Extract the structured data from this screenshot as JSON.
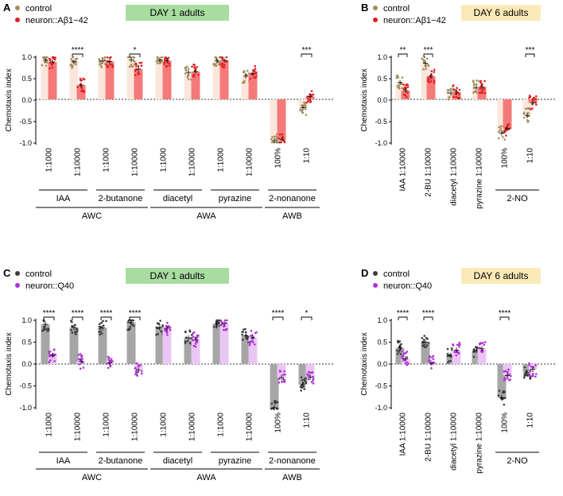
{
  "chart_data": [
    {
      "panel": "A",
      "type": "bar",
      "title": "DAY 1 adults",
      "title_bg": "#a8dca0",
      "ylabel": "Chemotaxis index",
      "ylim": [
        -1.0,
        1.0
      ],
      "yticks": [
        "1.0",
        "0.5",
        "0.0",
        "-0.5",
        "-1.0"
      ],
      "legend_position": "top-left",
      "series": [
        {
          "name": "control",
          "color": "#a0905a",
          "bar_color": "#fbe6dc"
        },
        {
          "name": "neuron::Aβ1−42",
          "color": "#e02020",
          "bar_color": "#f47a7a"
        }
      ],
      "categories": [
        "1:1000",
        "1:10000",
        "1:1000",
        "1:10000",
        "1:1000",
        "1:10000",
        "1:1000",
        "1:10000",
        "100%",
        "1:10"
      ],
      "groups": [
        [
          0.93,
          0.89
        ],
        [
          0.89,
          0.34
        ],
        [
          0.91,
          0.9
        ],
        [
          0.94,
          0.72
        ],
        [
          0.94,
          0.92
        ],
        [
          0.64,
          0.66
        ],
        [
          0.92,
          0.93
        ],
        [
          0.55,
          0.62
        ],
        [
          -0.98,
          -0.96
        ],
        [
          -0.2,
          0.07
        ]
      ],
      "significance": [
        {
          "group": 1,
          "label": "****"
        },
        {
          "group": 3,
          "label": "*"
        },
        {
          "group": 9,
          "label": "***"
        }
      ],
      "odorants": [
        {
          "label": "IAA",
          "span": [
            0,
            1
          ]
        },
        {
          "label": "2-butanone",
          "span": [
            2,
            3
          ]
        },
        {
          "label": "diacetyl",
          "span": [
            4,
            5
          ]
        },
        {
          "label": "pyrazine",
          "span": [
            6,
            7
          ]
        },
        {
          "label": "2-nonanone",
          "span": [
            8,
            9
          ]
        }
      ],
      "neurons": [
        {
          "label": "AWC",
          "span": [
            0,
            3
          ]
        },
        {
          "label": "AWA",
          "span": [
            4,
            7
          ]
        },
        {
          "label": "AWB",
          "span": [
            8,
            9
          ]
        }
      ]
    },
    {
      "panel": "B",
      "type": "bar",
      "title": "DAY 6 adults",
      "title_bg": "#fbeab8",
      "ylabel": "Chemotaxis index",
      "ylim": [
        -1.0,
        1.0
      ],
      "yticks": [
        "1.0",
        "0.5",
        "0.0",
        "-0.5",
        "-1.0"
      ],
      "legend_position": "top-left",
      "series": [
        {
          "name": "control",
          "color": "#a0905a",
          "bar_color": "#fbe6dc"
        },
        {
          "name": "neuron::Aβ1−42",
          "color": "#e02020",
          "bar_color": "#f47a7a"
        }
      ],
      "categories": [
        "IAA 1:10000",
        "2-BU 1:10000",
        "diacetyl 1:10000",
        "pyrazine 1:10000",
        "100%",
        "1:10"
      ],
      "groups": [
        [
          0.4,
          0.21
        ],
        [
          0.86,
          0.55
        ],
        [
          0.15,
          0.17
        ],
        [
          0.28,
          0.3
        ],
        [
          -0.8,
          -0.7
        ],
        [
          -0.38,
          -0.08
        ]
      ],
      "significance": [
        {
          "group": 0,
          "label": "**"
        },
        {
          "group": 1,
          "label": "***"
        },
        {
          "group": 5,
          "label": "***"
        }
      ],
      "odorants": [
        {
          "label": "2-NO",
          "span": [
            4,
            5
          ]
        }
      ],
      "neurons": []
    },
    {
      "panel": "C",
      "type": "bar",
      "title": "DAY 1 adults",
      "title_bg": "#a8dca0",
      "ylabel": "Chemotaxis index",
      "ylim": [
        -1.0,
        1.0
      ],
      "yticks": [
        "1.0",
        "0.5",
        "0.0",
        "-0.5",
        "-1.0"
      ],
      "legend_position": "top-left",
      "series": [
        {
          "name": "control",
          "color": "#3c3c3c",
          "bar_color": "#a6a6a6"
        },
        {
          "name": "neuron::Q40",
          "color": "#b030d8",
          "bar_color": "#eac6f4"
        }
      ],
      "categories": [
        "1:1000",
        "1:10000",
        "1:1000",
        "1:10000",
        "1:1000",
        "1:10000",
        "1:1000",
        "1:10000",
        "100%",
        "1:10"
      ],
      "groups": [
        [
          0.91,
          0.2
        ],
        [
          0.84,
          0.06
        ],
        [
          0.83,
          0.03
        ],
        [
          0.95,
          -0.14
        ],
        [
          0.84,
          0.82
        ],
        [
          0.6,
          0.56
        ],
        [
          0.92,
          0.93
        ],
        [
          0.65,
          0.6
        ],
        [
          -1.0,
          -0.31
        ],
        [
          -0.47,
          -0.3
        ]
      ],
      "significance": [
        {
          "group": 0,
          "label": "****"
        },
        {
          "group": 1,
          "label": "****"
        },
        {
          "group": 2,
          "label": "****"
        },
        {
          "group": 3,
          "label": "****"
        },
        {
          "group": 8,
          "label": "****"
        },
        {
          "group": 9,
          "label": "*"
        }
      ],
      "odorants": [
        {
          "label": "IAA",
          "span": [
            0,
            1
          ]
        },
        {
          "label": "2-butanone",
          "span": [
            2,
            3
          ]
        },
        {
          "label": "diacetyl",
          "span": [
            4,
            5
          ]
        },
        {
          "label": "pyrazine",
          "span": [
            6,
            7
          ]
        },
        {
          "label": "2-nonanone",
          "span": [
            8,
            9
          ]
        }
      ],
      "neurons": [
        {
          "label": "AWC",
          "span": [
            0,
            3
          ]
        },
        {
          "label": "AWA",
          "span": [
            4,
            7
          ]
        },
        {
          "label": "AWB",
          "span": [
            8,
            9
          ]
        }
      ]
    },
    {
      "panel": "D",
      "type": "bar",
      "title": "DAY 6 adults",
      "title_bg": "#fbeab8",
      "ylabel": "Chemotaxis index",
      "ylim": [
        -1.0,
        1.0
      ],
      "yticks": [
        "1.0",
        "0.5",
        "0.0",
        "-0.5",
        "-1.0"
      ],
      "legend_position": "top-left",
      "series": [
        {
          "name": "control",
          "color": "#3c3c3c",
          "bar_color": "#a6a6a6"
        },
        {
          "name": "neuron::Q40",
          "color": "#b030d8",
          "bar_color": "#eac6f4"
        }
      ],
      "categories": [
        "IAA 1:10000",
        "2-BU 1:10000",
        "diacetyl 1:10000",
        "pyrazine 1:10000",
        "100%",
        "1:10"
      ],
      "groups": [
        [
          0.37,
          0.12
        ],
        [
          0.5,
          0.03
        ],
        [
          0.2,
          0.32
        ],
        [
          0.31,
          0.35
        ],
        [
          -0.77,
          -0.26
        ],
        [
          -0.2,
          -0.12
        ]
      ],
      "significance": [
        {
          "group": 0,
          "label": "****"
        },
        {
          "group": 1,
          "label": "****"
        },
        {
          "group": 4,
          "label": "****"
        }
      ],
      "odorants": [
        {
          "label": "2-NO",
          "span": [
            4,
            5
          ]
        }
      ],
      "neurons": []
    }
  ]
}
